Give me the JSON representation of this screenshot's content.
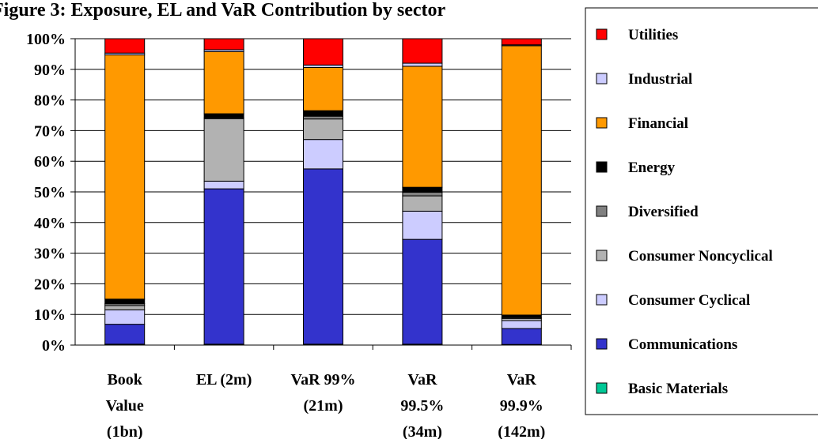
{
  "chart_data": {
    "type": "bar",
    "stacked": true,
    "normalized": true,
    "title": "Figure 3: Exposure, EL and VaR Contribution by sector",
    "categories": [
      [
        "Book",
        "Value",
        "(1bn)"
      ],
      [
        "EL (2m)"
      ],
      [
        "VaR 99%",
        "(21m)"
      ],
      [
        "VaR",
        "99.5%",
        "(34m)"
      ],
      [
        "VaR",
        "99.9%",
        "(142m)"
      ]
    ],
    "ylim": [
      0,
      100
    ],
    "yticks": [
      0,
      10,
      20,
      30,
      40,
      50,
      60,
      70,
      80,
      90,
      100
    ],
    "ytick_labels": [
      "0%",
      "10%",
      "20%",
      "30%",
      "40%",
      "50%",
      "60%",
      "70%",
      "80%",
      "90%",
      "100%"
    ],
    "grid": true,
    "legend_position": "right",
    "series": [
      {
        "name": "Basic Materials",
        "color": "#00c896",
        "values": [
          0.3,
          0.3,
          0.3,
          0.3,
          0.2
        ]
      },
      {
        "name": "Communications",
        "color": "#3333cc",
        "values": [
          6.5,
          50.7,
          57.2,
          34.2,
          5.2
        ]
      },
      {
        "name": "Consumer Cyclical",
        "color": "#ccccff",
        "values": [
          4.7,
          2.5,
          9.6,
          9.2,
          2.6
        ]
      },
      {
        "name": "Consumer Noncyclical",
        "color": "#b2b2b2",
        "values": [
          1.4,
          20.4,
          6.7,
          5.0,
          0.7
        ]
      },
      {
        "name": "Diversified",
        "color": "#808080",
        "values": [
          0.6,
          0.3,
          0.9,
          1.2,
          0.3
        ]
      },
      {
        "name": "Energy",
        "color": "#000000",
        "values": [
          1.5,
          1.3,
          1.8,
          1.6,
          0.8
        ]
      },
      {
        "name": "Financial",
        "color": "#ff9900",
        "values": [
          79.7,
          20.3,
          14.1,
          39.5,
          87.9
        ]
      },
      {
        "name": "Industrial",
        "color": "#ccccff",
        "values": [
          0.6,
          0.6,
          0.8,
          1.0,
          0.3
        ]
      },
      {
        "name": "Utilities",
        "color": "#ff0000",
        "values": [
          4.7,
          3.6,
          8.6,
          8.0,
          2.0
        ]
      }
    ],
    "legend_order": [
      "Utilities",
      "Industrial",
      "Financial",
      "Energy",
      "Diversified",
      "Consumer Noncyclical",
      "Consumer Cyclical",
      "Communications",
      "Basic Materials"
    ]
  }
}
